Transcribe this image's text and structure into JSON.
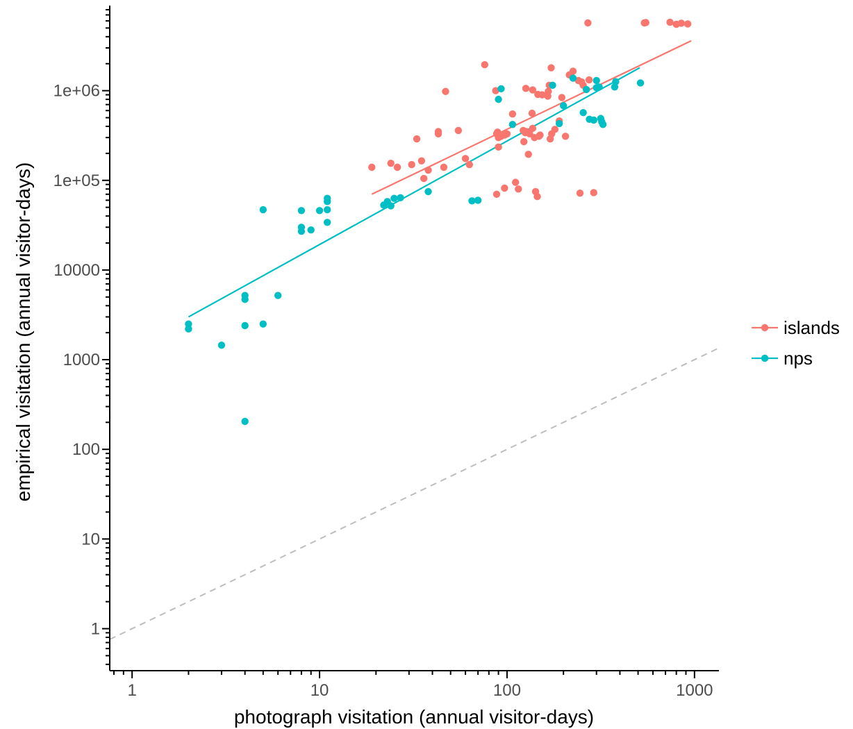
{
  "chart_data": {
    "type": "scatter",
    "xlabel": "photograph visitation (annual visitor-days)",
    "ylabel": "empirical visitation (annual visitor-days)",
    "x_scale": "log10",
    "y_scale": "log10",
    "xlim": [
      0.76,
      1350
    ],
    "ylim": [
      0.34,
      8900000
    ],
    "x_ticks": [
      {
        "value": 1,
        "label": "1"
      },
      {
        "value": 10,
        "label": "10"
      },
      {
        "value": 100,
        "label": "100"
      },
      {
        "value": 1000,
        "label": "1000"
      }
    ],
    "y_ticks": [
      {
        "value": 1,
        "label": "1"
      },
      {
        "value": 10,
        "label": "10"
      },
      {
        "value": 100,
        "label": "100"
      },
      {
        "value": 1000,
        "label": "1000"
      },
      {
        "value": 10000,
        "label": "10000"
      },
      {
        "value": 100000,
        "label": "1e+05"
      },
      {
        "value": 1000000,
        "label": "1e+06"
      }
    ],
    "grid": false,
    "legend_position": "right",
    "reference_line": {
      "slope": 1,
      "color": "#bdbdbd",
      "style": "dashed"
    },
    "series": [
      {
        "name": "islands",
        "color": "#f8766d",
        "points": [
          [
            19,
            140000
          ],
          [
            24,
            155000
          ],
          [
            26,
            140000
          ],
          [
            31,
            150000
          ],
          [
            33,
            290000
          ],
          [
            35,
            165000
          ],
          [
            36,
            105000
          ],
          [
            38,
            130000
          ],
          [
            43,
            330000
          ],
          [
            43,
            350000
          ],
          [
            46,
            140000
          ],
          [
            47,
            980000
          ],
          [
            55,
            360000
          ],
          [
            60,
            175000
          ],
          [
            63,
            150000
          ],
          [
            76,
            1950000
          ],
          [
            87,
            1000000
          ],
          [
            88,
            70000
          ],
          [
            88,
            330000
          ],
          [
            89,
            345000
          ],
          [
            90,
            300000
          ],
          [
            90,
            235000
          ],
          [
            93,
            310000
          ],
          [
            97,
            320000
          ],
          [
            97,
            82000
          ],
          [
            100,
            330000
          ],
          [
            107,
            550000
          ],
          [
            111,
            95000
          ],
          [
            115,
            80000
          ],
          [
            122,
            360000
          ],
          [
            123,
            270000
          ],
          [
            125,
            340000
          ],
          [
            126,
            1060000
          ],
          [
            127,
            350000
          ],
          [
            130,
            195000
          ],
          [
            132,
            330000
          ],
          [
            136,
            560000
          ],
          [
            137,
            380000
          ],
          [
            137,
            1020000
          ],
          [
            140,
            300000
          ],
          [
            142,
            75000
          ],
          [
            145,
            66000
          ],
          [
            146,
            910000
          ],
          [
            148,
            310000
          ],
          [
            150,
            320000
          ],
          [
            154,
            900000
          ],
          [
            165,
            870000
          ],
          [
            166,
            980000
          ],
          [
            168,
            1150000
          ],
          [
            170,
            290000
          ],
          [
            172,
            1800000
          ],
          [
            173,
            330000
          ],
          [
            180,
            370000
          ],
          [
            190,
            460000
          ],
          [
            196,
            840000
          ],
          [
            205,
            310000
          ],
          [
            215,
            1500000
          ],
          [
            225,
            1650000
          ],
          [
            240,
            1300000
          ],
          [
            245,
            72000
          ],
          [
            250,
            1250000
          ],
          [
            255,
            1150000
          ],
          [
            270,
            5700000
          ],
          [
            274,
            1320000
          ],
          [
            290,
            73000
          ],
          [
            540,
            5700000
          ],
          [
            550,
            5750000
          ],
          [
            740,
            5800000
          ],
          [
            800,
            5500000
          ],
          [
            850,
            5650000
          ],
          [
            920,
            5550000
          ]
        ],
        "fit": [
          [
            19,
            70000
          ],
          [
            960,
            3600000
          ]
        ]
      },
      {
        "name": "nps",
        "color": "#00bfc4",
        "points": [
          [
            2,
            2500
          ],
          [
            2,
            2200
          ],
          [
            3,
            1450
          ],
          [
            4,
            5200
          ],
          [
            4,
            4700
          ],
          [
            4,
            2400
          ],
          [
            4,
            205
          ],
          [
            5,
            47000
          ],
          [
            5,
            2500
          ],
          [
            6,
            5200
          ],
          [
            8,
            46000
          ],
          [
            8,
            30000
          ],
          [
            8,
            27000
          ],
          [
            9,
            28000
          ],
          [
            10,
            46000
          ],
          [
            11,
            63000
          ],
          [
            11,
            58000
          ],
          [
            11,
            47000
          ],
          [
            11,
            34000
          ],
          [
            22,
            53000
          ],
          [
            23,
            58000
          ],
          [
            24,
            52000
          ],
          [
            25,
            63000
          ],
          [
            27,
            64000
          ],
          [
            38,
            75000
          ],
          [
            65,
            59000
          ],
          [
            70,
            60000
          ],
          [
            90,
            800000
          ],
          [
            93,
            1050000
          ],
          [
            107,
            420000
          ],
          [
            175,
            1150000
          ],
          [
            190,
            430000
          ],
          [
            200,
            680000
          ],
          [
            225,
            1380000
          ],
          [
            255,
            570000
          ],
          [
            265,
            1030000
          ],
          [
            275,
            480000
          ],
          [
            290,
            470000
          ],
          [
            300,
            1300000
          ],
          [
            300,
            1080000
          ],
          [
            310,
            1100000
          ],
          [
            316,
            490000
          ],
          [
            320,
            450000
          ],
          [
            325,
            420000
          ],
          [
            375,
            1100000
          ],
          [
            380,
            1260000
          ],
          [
            515,
            1220000
          ]
        ],
        "fit": [
          [
            2,
            3000
          ],
          [
            510,
            1800000
          ]
        ]
      }
    ]
  }
}
